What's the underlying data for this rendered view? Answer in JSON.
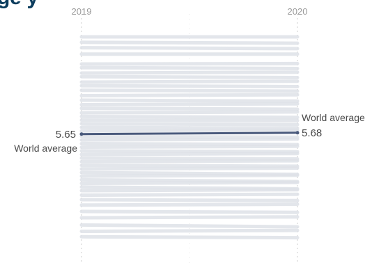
{
  "title": "ge                        y",
  "colors": {
    "background_lines": "#dfe2e8",
    "world_average_line": "#4a5a7c",
    "gridline": "#cccccc",
    "title": "#0b3c5d"
  },
  "chart_data": {
    "type": "line",
    "chart_kind": "slope",
    "title": "",
    "xlabel": "",
    "ylabel": "",
    "grid": true,
    "x": [
      "2019",
      "2020"
    ],
    "ylim": [
      3.2,
      8.0
    ],
    "y_axis_direction": "inverted",
    "series": [
      {
        "name": "World average",
        "values": [
          5.65,
          5.68
        ],
        "highlighted": true,
        "labels": [
          "5.65",
          "5.68"
        ],
        "label_texts": [
          "World average",
          "World average"
        ]
      }
    ],
    "background_series": [
      [
        7.8,
        7.8
      ],
      [
        7.68,
        7.66
      ],
      [
        7.56,
        7.54
      ],
      [
        7.42,
        7.42
      ],
      [
        7.2,
        7.21
      ],
      [
        7.12,
        7.1
      ],
      [
        7.0,
        7.02
      ],
      [
        6.92,
        6.9
      ],
      [
        6.8,
        6.82
      ],
      [
        6.72,
        6.7
      ],
      [
        6.62,
        6.6
      ],
      [
        6.5,
        6.52
      ],
      [
        6.4,
        6.38
      ],
      [
        6.3,
        6.32
      ],
      [
        6.22,
        6.2
      ],
      [
        6.12,
        6.14
      ],
      [
        6.04,
        6.02
      ],
      [
        5.96,
        5.95
      ],
      [
        5.88,
        5.86
      ],
      [
        5.8,
        5.78
      ],
      [
        5.72,
        5.74
      ],
      [
        5.6,
        5.58
      ],
      [
        5.52,
        5.54
      ],
      [
        5.44,
        5.42
      ],
      [
        5.36,
        5.38
      ],
      [
        5.28,
        5.26
      ],
      [
        5.2,
        5.22
      ],
      [
        5.12,
        5.1
      ],
      [
        5.04,
        5.06
      ],
      [
        4.96,
        4.94
      ],
      [
        4.88,
        4.9
      ],
      [
        4.8,
        4.76
      ],
      [
        4.72,
        4.74
      ],
      [
        4.64,
        4.6
      ],
      [
        4.56,
        4.58
      ],
      [
        4.48,
        4.44
      ],
      [
        4.4,
        4.42
      ],
      [
        4.3,
        4.32
      ],
      [
        4.2,
        4.18
      ],
      [
        4.08,
        4.1
      ],
      [
        3.94,
        3.92
      ],
      [
        3.8,
        3.82
      ],
      [
        3.64,
        3.6
      ],
      [
        3.5,
        3.52
      ],
      [
        3.38,
        3.36
      ]
    ]
  }
}
